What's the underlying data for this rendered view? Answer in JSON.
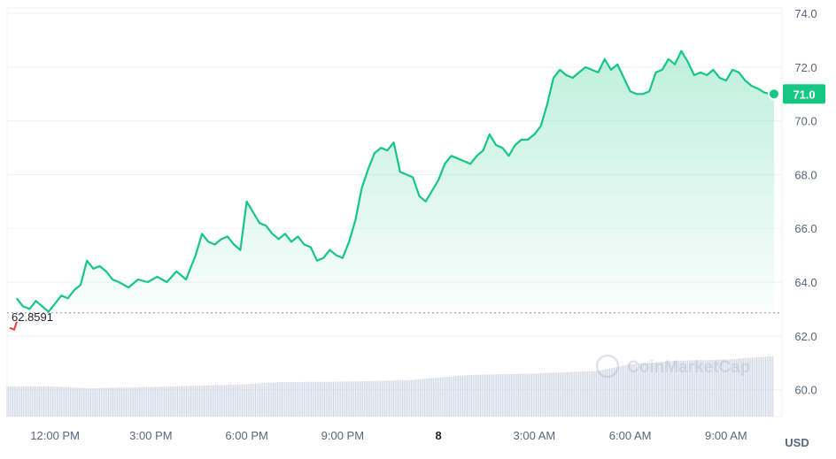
{
  "chart_data": {
    "type": "area",
    "currency_label": "USD",
    "open_value_label": "62.8591",
    "last_price_label": "71.0",
    "open_value": 62.8591,
    "last_value": 71.0,
    "ylim": [
      59.0,
      74.2
    ],
    "yticks": [
      {
        "value": 74.0,
        "label": "74.0"
      },
      {
        "value": 72.0,
        "label": "72.0"
      },
      {
        "value": 70.0,
        "label": "70.0"
      },
      {
        "value": 68.0,
        "label": "68.0"
      },
      {
        "value": 66.0,
        "label": "66.0"
      },
      {
        "value": 64.0,
        "label": "64.0"
      },
      {
        "value": 62.0,
        "label": "62.0"
      },
      {
        "value": 60.0,
        "label": "60.0"
      }
    ],
    "xlim": [
      10.5,
      34.75
    ],
    "xticks": [
      {
        "hour": 12,
        "label": "12:00 PM"
      },
      {
        "hour": 15,
        "label": "3:00 PM"
      },
      {
        "hour": 18,
        "label": "6:00 PM"
      },
      {
        "hour": 21,
        "label": "9:00 PM"
      },
      {
        "hour": 24,
        "label": "8"
      },
      {
        "hour": 27,
        "label": "3:00 AM"
      },
      {
        "hour": 30,
        "label": "6:00 AM"
      },
      {
        "hour": 33,
        "label": "9:00 AM"
      }
    ],
    "grid": true,
    "watermark": "CoinMarketCap",
    "colors": {
      "up": "#16c784",
      "down": "#ea3943",
      "grid": "#eff2f5",
      "tick_text": "#58667e",
      "volume": "#cfd6e4",
      "baseline": "#8a919e"
    },
    "price_series": {
      "name": "Price",
      "x": [
        10.8,
        11.0,
        11.2,
        11.4,
        11.6,
        11.8,
        12.0,
        12.2,
        12.4,
        12.6,
        12.8,
        13.0,
        13.2,
        13.4,
        13.6,
        13.8,
        14.0,
        14.3,
        14.6,
        14.9,
        15.2,
        15.5,
        15.8,
        16.1,
        16.4,
        16.6,
        16.8,
        17.0,
        17.2,
        17.4,
        17.6,
        17.8,
        18.0,
        18.2,
        18.4,
        18.6,
        18.8,
        19.0,
        19.2,
        19.4,
        19.6,
        19.8,
        20.0,
        20.2,
        20.4,
        20.6,
        20.8,
        21.0,
        21.2,
        21.4,
        21.6,
        21.8,
        22.0,
        22.2,
        22.4,
        22.6,
        22.8,
        23.0,
        23.2,
        23.4,
        23.6,
        23.8,
        24.0,
        24.2,
        24.4,
        24.6,
        24.8,
        25.0,
        25.2,
        25.4,
        25.6,
        25.8,
        26.0,
        26.2,
        26.4,
        26.6,
        26.8,
        27.0,
        27.2,
        27.4,
        27.6,
        27.8,
        28.0,
        28.2,
        28.4,
        28.6,
        28.8,
        29.0,
        29.2,
        29.4,
        29.6,
        29.8,
        30.0,
        30.2,
        30.4,
        30.6,
        30.8,
        31.0,
        31.2,
        31.4,
        31.6,
        31.8,
        32.0,
        32.2,
        32.4,
        32.6,
        32.8,
        33.0,
        33.2,
        33.4,
        33.6,
        33.8,
        34.0,
        34.2,
        34.4,
        34.5
      ],
      "y": [
        63.4,
        63.1,
        63.0,
        63.3,
        63.1,
        62.9,
        63.2,
        63.5,
        63.4,
        63.7,
        63.9,
        64.8,
        64.5,
        64.6,
        64.4,
        64.1,
        64.0,
        63.8,
        64.1,
        64.0,
        64.2,
        64.0,
        64.4,
        64.1,
        65.0,
        65.8,
        65.5,
        65.4,
        65.6,
        65.7,
        65.4,
        65.2,
        67.0,
        66.6,
        66.2,
        66.1,
        65.8,
        65.6,
        65.8,
        65.5,
        65.7,
        65.4,
        65.3,
        64.8,
        64.9,
        65.2,
        65.0,
        64.9,
        65.5,
        66.3,
        67.5,
        68.2,
        68.8,
        69.0,
        68.9,
        69.2,
        68.1,
        68.0,
        67.9,
        67.2,
        67.0,
        67.4,
        67.8,
        68.4,
        68.7,
        68.6,
        68.5,
        68.4,
        68.7,
        68.9,
        69.5,
        69.1,
        69.0,
        68.7,
        69.1,
        69.3,
        69.3,
        69.5,
        69.8,
        70.6,
        71.6,
        71.9,
        71.7,
        71.6,
        71.8,
        72.0,
        71.9,
        71.8,
        72.3,
        71.9,
        72.1,
        71.6,
        71.1,
        71.0,
        71.0,
        71.1,
        71.8,
        71.9,
        72.3,
        72.1,
        72.6,
        72.2,
        71.7,
        71.8,
        71.7,
        71.9,
        71.6,
        71.5,
        71.9,
        71.8,
        71.5,
        71.3,
        71.2,
        71.05,
        71.0,
        71.0
      ]
    },
    "volume_series": {
      "name": "Volume",
      "x": [
        10.5,
        12.0,
        13.0,
        15.0,
        18.0,
        19.0,
        21.0,
        23.0,
        25.0,
        27.0,
        29.0,
        30.0,
        31.5,
        33.0,
        34.5
      ],
      "y": [
        60.12,
        60.12,
        60.05,
        60.1,
        60.2,
        60.28,
        60.3,
        60.35,
        60.55,
        60.6,
        60.7,
        60.95,
        61.08,
        61.12,
        61.25
      ]
    }
  }
}
